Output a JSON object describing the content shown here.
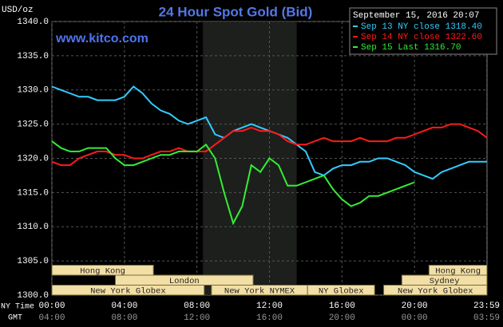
{
  "chart_data": {
    "type": "line",
    "title": "24 Hour Spot Gold (Bid)",
    "subtitle": "www.kitco.com",
    "y_label": "USD/oz",
    "x_label": "NY Time",
    "x2_label": "GMT",
    "timestamp": "September 15, 2016 20:07",
    "x": [
      0,
      0.5,
      1,
      1.5,
      2,
      2.5,
      3,
      3.5,
      4,
      4.5,
      5,
      5.5,
      6,
      6.5,
      7,
      7.5,
      8,
      8.5,
      9,
      9.5,
      10,
      10.5,
      11,
      11.5,
      12,
      12.5,
      13,
      13.5,
      14,
      14.5,
      15,
      15.5,
      16,
      16.5,
      17,
      17.5,
      18,
      18.5,
      19,
      19.5,
      20,
      20.5,
      21,
      21.5,
      22,
      22.5,
      23,
      23.5,
      24
    ],
    "series": [
      {
        "name": "Sep 13 NY close 1318.40",
        "color": "#33ccff",
        "values": [
          1330.5,
          1330,
          1329.5,
          1329,
          1329,
          1328.5,
          1328.5,
          1328.5,
          1329,
          1330.5,
          1329.5,
          1328,
          1327,
          1326.5,
          1325.5,
          1325,
          1325.5,
          1326,
          1323.5,
          1323,
          1324,
          1324.5,
          1325,
          1324.5,
          1324,
          1323.5,
          1323,
          1322,
          1321,
          1318,
          1317.5,
          1318.5,
          1319,
          1319,
          1319.5,
          1319.5,
          1320,
          1320,
          1319.5,
          1319,
          1318,
          1317.5,
          1317,
          1318,
          1318.5,
          1319,
          1319.5,
          1319.5,
          1319.5
        ]
      },
      {
        "name": "Sep 14 NY close 1322.60",
        "color": "#ff1a1a",
        "values": [
          1319.5,
          1319,
          1319,
          1320,
          1320.5,
          1321,
          1321,
          1320.5,
          1320.5,
          1320,
          1320,
          1320.5,
          1321,
          1321,
          1321.5,
          1321,
          1321,
          1321,
          1322,
          1323,
          1324,
          1324,
          1324.5,
          1324,
          1324,
          1323.5,
          1322.5,
          1322,
          1322,
          1322.5,
          1323,
          1322.5,
          1322.5,
          1322.5,
          1323,
          1322.5,
          1322.5,
          1322.5,
          1323,
          1323,
          1323.5,
          1324,
          1324.5,
          1324.5,
          1325,
          1325,
          1324.5,
          1324,
          1323
        ]
      },
      {
        "name": "Sep 15 Last 1316.70",
        "color": "#33ee33",
        "values": [
          1322.5,
          1321.5,
          1321,
          1321,
          1321.5,
          1321.5,
          1321.5,
          1320,
          1319,
          1319,
          1319.5,
          1320,
          1320.5,
          1320.5,
          1321,
          1321,
          1321,
          1322,
          1320,
          1315,
          1310.5,
          1313,
          1319,
          1318,
          1320,
          1319,
          1316,
          1316,
          1316.5,
          1317,
          1317.5,
          1315.5,
          1314,
          1313,
          1313.5,
          1314.5,
          1314.5,
          1315,
          1315.5,
          1316,
          1316.5,
          null,
          null,
          null,
          null,
          null,
          null,
          null,
          null
        ]
      }
    ],
    "xlim": [
      0,
      24
    ],
    "xticks": [
      {
        "value": 0,
        "label": "00:00"
      },
      {
        "value": 4,
        "label": "04:00"
      },
      {
        "value": 8,
        "label": "08:00"
      },
      {
        "value": 12,
        "label": "12:00"
      },
      {
        "value": 16,
        "label": "16:00"
      },
      {
        "value": 20,
        "label": "20:00"
      },
      {
        "value": 23.98,
        "label": "23:59"
      }
    ],
    "gmt_labels": [
      "04:00",
      "08:00",
      "12:00",
      "16:00",
      "20:00",
      "00:00",
      "03:59"
    ],
    "ylim": [
      1300,
      1340
    ],
    "yticks": [
      {
        "value": 1300,
        "label": "1300.0"
      },
      {
        "value": 1305,
        "label": "1305.0"
      },
      {
        "value": 1310,
        "label": "1310.0"
      },
      {
        "value": 1315,
        "label": "1315.0"
      },
      {
        "value": 1320,
        "label": "1320.0"
      },
      {
        "value": 1325,
        "label": "1325.0"
      },
      {
        "value": 1330,
        "label": "1330.0"
      },
      {
        "value": 1335,
        "label": "1335.0"
      },
      {
        "value": 1340,
        "label": "1340.0"
      }
    ],
    "grid": true,
    "shade": [
      8.33,
      13.5
    ],
    "session_rows": [
      [
        {
          "label": "Hong Kong",
          "start": 0,
          "end": 5.6
        },
        {
          "label": "Hong Kong",
          "start": 20.8,
          "end": 24
        }
      ],
      [
        {
          "label": "London",
          "start": 3.5,
          "end": 11.1
        },
        {
          "label": "Sydney",
          "start": 19.3,
          "end": 24
        }
      ],
      [
        {
          "label": "New York Globex",
          "start": 0,
          "end": 8.4
        },
        {
          "label": "New York NYMEX",
          "start": 8.8,
          "end": 14.1
        },
        {
          "label": "NY Globex",
          "start": 14.1,
          "end": 17.8
        },
        {
          "label": "New York Globex",
          "start": 18.3,
          "end": 24
        }
      ]
    ]
  }
}
